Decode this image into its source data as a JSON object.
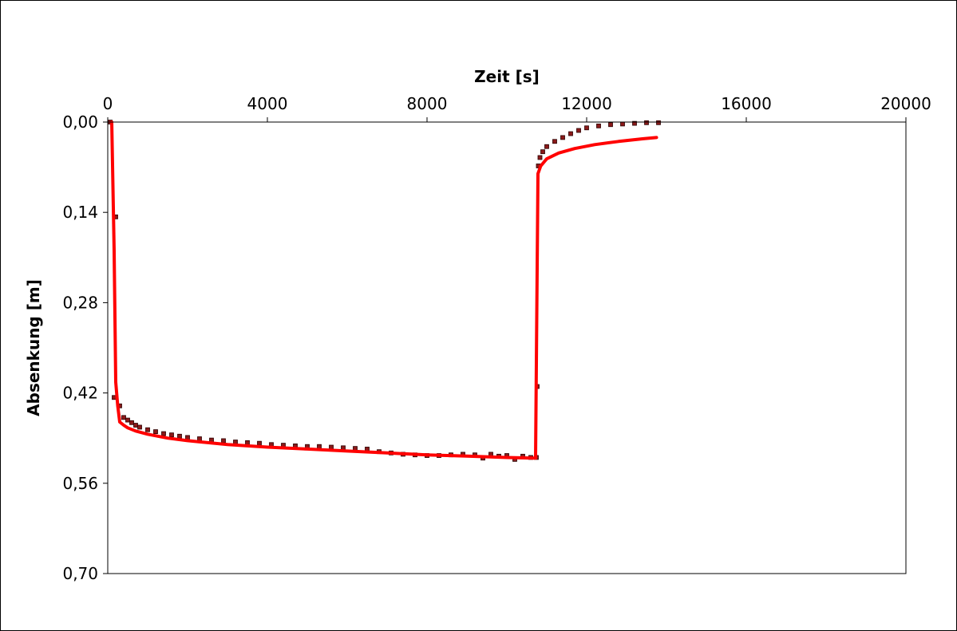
{
  "chart_data": {
    "type": "scatter",
    "xlabel": "Zeit [s]",
    "ylabel": "Absenkung [m]",
    "xlim": [
      0,
      20000
    ],
    "ylim": [
      0,
      0.7
    ],
    "y_inverted": true,
    "x_axis_position": "top",
    "grid": false,
    "x_ticks": [
      0,
      4000,
      8000,
      12000,
      16000,
      20000
    ],
    "x_tick_labels": [
      "0",
      "4000",
      "8000",
      "12000",
      "16000",
      "20000"
    ],
    "y_ticks": [
      0,
      0.14,
      0.28,
      0.42,
      0.56,
      0.7
    ],
    "y_tick_labels": [
      "0,00",
      "0,14",
      "0,28",
      "0,42",
      "0,56",
      "0,70"
    ],
    "colors": {
      "measured": "#8b1a1a",
      "fit": "#ff0000"
    },
    "series": [
      {
        "kind": "scatter",
        "points": [
          [
            60,
            0.0
          ],
          [
            200,
            0.147
          ],
          [
            160,
            0.427
          ],
          [
            300,
            0.44
          ],
          [
            400,
            0.458
          ],
          [
            500,
            0.462
          ],
          [
            600,
            0.466
          ],
          [
            700,
            0.47
          ],
          [
            800,
            0.473
          ],
          [
            1000,
            0.477
          ],
          [
            1200,
            0.48
          ],
          [
            1400,
            0.483
          ],
          [
            1600,
            0.485
          ],
          [
            1800,
            0.487
          ],
          [
            2000,
            0.489
          ],
          [
            2300,
            0.491
          ],
          [
            2600,
            0.493
          ],
          [
            2900,
            0.494
          ],
          [
            3200,
            0.496
          ],
          [
            3500,
            0.497
          ],
          [
            3800,
            0.498
          ],
          [
            4100,
            0.5
          ],
          [
            4400,
            0.501
          ],
          [
            4700,
            0.502
          ],
          [
            5000,
            0.503
          ],
          [
            5300,
            0.503
          ],
          [
            5600,
            0.504
          ],
          [
            5900,
            0.505
          ],
          [
            6200,
            0.506
          ],
          [
            6500,
            0.507
          ],
          [
            6800,
            0.511
          ],
          [
            7100,
            0.513
          ],
          [
            7400,
            0.515
          ],
          [
            7700,
            0.516
          ],
          [
            8000,
            0.517
          ],
          [
            8300,
            0.517
          ],
          [
            8600,
            0.516
          ],
          [
            8900,
            0.515
          ],
          [
            9200,
            0.516
          ],
          [
            9400,
            0.521
          ],
          [
            9600,
            0.515
          ],
          [
            9800,
            0.518
          ],
          [
            10000,
            0.517
          ],
          [
            10200,
            0.523
          ],
          [
            10400,
            0.518
          ],
          [
            10600,
            0.52
          ],
          [
            10740,
            0.52
          ],
          [
            10760,
            0.41
          ],
          [
            10790,
            0.068
          ],
          [
            10830,
            0.055
          ],
          [
            10900,
            0.046
          ],
          [
            11000,
            0.038
          ],
          [
            11200,
            0.03
          ],
          [
            11400,
            0.024
          ],
          [
            11600,
            0.018
          ],
          [
            11800,
            0.013
          ],
          [
            12000,
            0.009
          ],
          [
            12300,
            0.006
          ],
          [
            12600,
            0.004
          ],
          [
            12900,
            0.003
          ],
          [
            13200,
            0.002
          ],
          [
            13500,
            0.001
          ],
          [
            13800,
            0.001
          ]
        ]
      },
      {
        "kind": "line",
        "points": [
          [
            100,
            0.0
          ],
          [
            160,
            0.2
          ],
          [
            200,
            0.403
          ],
          [
            250,
            0.44
          ],
          [
            300,
            0.465
          ],
          [
            400,
            0.47
          ],
          [
            500,
            0.474
          ],
          [
            700,
            0.479
          ],
          [
            1000,
            0.484
          ],
          [
            1500,
            0.49
          ],
          [
            2000,
            0.494
          ],
          [
            3000,
            0.5
          ],
          [
            4000,
            0.504
          ],
          [
            5000,
            0.507
          ],
          [
            6000,
            0.51
          ],
          [
            7000,
            0.513
          ],
          [
            8000,
            0.516
          ],
          [
            9000,
            0.518
          ],
          [
            10000,
            0.52
          ],
          [
            10650,
            0.521
          ],
          [
            10720,
            0.521
          ],
          [
            10780,
            0.08
          ],
          [
            10850,
            0.068
          ],
          [
            11000,
            0.057
          ],
          [
            11300,
            0.048
          ],
          [
            11700,
            0.041
          ],
          [
            12200,
            0.035
          ],
          [
            12800,
            0.03
          ],
          [
            13400,
            0.026
          ],
          [
            13750,
            0.024
          ]
        ]
      }
    ]
  }
}
